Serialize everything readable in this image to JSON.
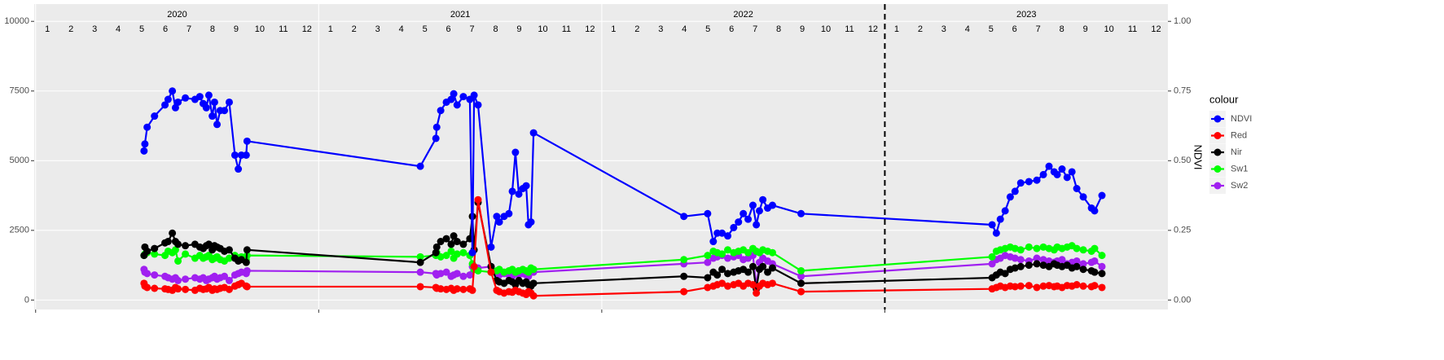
{
  "chart_data": {
    "type": "line",
    "y2_title": "NDVI",
    "legend_title": "colour",
    "legend": "right",
    "grid": true,
    "year_labels": [
      2020,
      2021,
      2022,
      2023
    ],
    "month_labels": [
      1,
      2,
      3,
      4,
      5,
      6,
      7,
      8,
      9,
      10,
      11,
      12
    ],
    "vline": 2023,
    "xlim": [
      2019.995,
      2024.0
    ],
    "xticks": [
      2020,
      2021,
      2022,
      2023
    ],
    "ylim": [
      -340,
      10620
    ],
    "yticks": [
      0,
      2500,
      5000,
      7500,
      10000
    ],
    "y2lim": [
      -0.034,
      1.062
    ],
    "y2ticks": [
      {
        "value": 0,
        "label": "0.00"
      },
      {
        "value": 0.25,
        "label": "0.25"
      },
      {
        "value": 0.5,
        "label": "0.50"
      },
      {
        "value": 0.75,
        "label": "0.75"
      },
      {
        "value": 1,
        "label": "1.00"
      }
    ],
    "x": [
      2020.383,
      2020.386,
      2020.394,
      2020.42,
      2020.457,
      2020.468,
      2020.483,
      2020.494,
      2020.503,
      2020.529,
      2020.563,
      2020.58,
      2020.592,
      2020.603,
      2020.612,
      2020.624,
      2020.632,
      2020.641,
      2020.652,
      2020.667,
      2020.684,
      2020.704,
      2020.716,
      2020.727,
      2020.744,
      2020.747,
      2021.359,
      2021.414,
      2021.417,
      2021.431,
      2021.451,
      2021.468,
      2021.477,
      2021.489,
      2021.511,
      2021.534,
      2021.543,
      2021.549,
      2021.563,
      2021.609,
      2021.629,
      2021.638,
      2021.655,
      2021.672,
      2021.684,
      2021.695,
      2021.707,
      2021.721,
      2021.733,
      2021.741,
      2021.75,
      2021.759,
      2022.29,
      2022.374,
      2022.394,
      2022.408,
      2022.425,
      2022.445,
      2022.466,
      2022.483,
      2022.5,
      2022.517,
      2022.534,
      2022.546,
      2022.557,
      2022.569,
      2022.586,
      2022.603,
      2022.704,
      2023.379,
      2023.394,
      2023.408,
      2023.425,
      2023.443,
      2023.46,
      2023.48,
      2023.509,
      2023.537,
      2023.56,
      2023.58,
      2023.598,
      2023.609,
      2023.626,
      2023.644,
      2023.661,
      2023.678,
      2023.701,
      2023.73,
      2023.741,
      2023.767
    ],
    "series": [
      {
        "name": "NDVI",
        "color": "#0000ff",
        "axis": "y2",
        "values": [
          0.535,
          0.56,
          0.62,
          0.66,
          0.7,
          0.72,
          0.75,
          0.69,
          0.71,
          0.725,
          0.72,
          0.73,
          0.705,
          0.69,
          0.735,
          0.66,
          0.71,
          0.63,
          0.68,
          0.68,
          0.71,
          0.52,
          0.47,
          0.52,
          0.52,
          0.57,
          0.48,
          0.58,
          0.62,
          0.68,
          0.71,
          0.72,
          0.74,
          0.7,
          0.73,
          0.72,
          0.17,
          0.735,
          0.7,
          0.19,
          0.3,
          0.28,
          0.3,
          0.31,
          0.39,
          0.53,
          0.38,
          0.4,
          0.41,
          0.27,
          0.28,
          0.6,
          0.3,
          0.31,
          0.21,
          0.24,
          0.24,
          0.23,
          0.26,
          0.28,
          0.31,
          0.29,
          0.34,
          0.27,
          0.32,
          0.36,
          0.33,
          0.34,
          0.31,
          0.27,
          0.24,
          0.29,
          0.32,
          0.37,
          0.39,
          0.42,
          0.425,
          0.43,
          0.45,
          0.48,
          0.46,
          0.45,
          0.47,
          0.44,
          0.46,
          0.4,
          0.37,
          0.33,
          0.32,
          0.375
        ]
      },
      {
        "name": "Red",
        "color": "#ff0000",
        "values": [
          600,
          500,
          450,
          420,
          400,
          380,
          350,
          450,
          400,
          380,
          350,
          420,
          380,
          400,
          450,
          350,
          400,
          380,
          420,
          450,
          380,
          500,
          550,
          600,
          500,
          480,
          480,
          450,
          420,
          400,
          380,
          420,
          350,
          400,
          380,
          400,
          350,
          1200,
          3600,
          1000,
          350,
          300,
          250,
          300,
          280,
          350,
          300,
          250,
          200,
          300,
          250,
          150,
          300,
          450,
          500,
          550,
          600,
          500,
          550,
          600,
          500,
          600,
          550,
          250,
          500,
          600,
          550,
          600,
          300,
          400,
          450,
          500,
          450,
          500,
          480,
          500,
          520,
          450,
          500,
          520,
          480,
          500,
          450,
          520,
          500,
          550,
          500,
          480,
          520,
          450
        ]
      },
      {
        "name": "Nir",
        "color": "#000000",
        "values": [
          1600,
          1900,
          1750,
          1850,
          2050,
          2100,
          2400,
          2100,
          2000,
          1950,
          2000,
          1900,
          1850,
          1950,
          2000,
          1800,
          1950,
          1900,
          1850,
          1750,
          1800,
          1500,
          1400,
          1450,
          1350,
          1800,
          1350,
          1700,
          1900,
          2100,
          2200,
          2000,
          2300,
          2100,
          2000,
          2200,
          3000,
          1800,
          3500,
          1200,
          700,
          650,
          600,
          700,
          650,
          550,
          700,
          600,
          650,
          550,
          500,
          600,
          850,
          800,
          1000,
          900,
          1100,
          950,
          1000,
          1050,
          1100,
          1000,
          1200,
          400,
          1100,
          1200,
          1000,
          1150,
          600,
          800,
          900,
          1000,
          950,
          1100,
          1150,
          1200,
          1250,
          1300,
          1250,
          1200,
          1300,
          1250,
          1200,
          1250,
          1150,
          1200,
          1100,
          1050,
          1000,
          950
        ]
      },
      {
        "name": "Sw1",
        "color": "#00ff00",
        "values": [
          1600,
          1650,
          1700,
          1650,
          1600,
          1750,
          1700,
          1800,
          1400,
          1650,
          1500,
          1600,
          1500,
          1550,
          1600,
          1450,
          1500,
          1550,
          1450,
          1400,
          1500,
          1600,
          1500,
          1550,
          1450,
          1600,
          1550,
          1600,
          1700,
          1550,
          1600,
          1750,
          1500,
          1650,
          1700,
          1600,
          1300,
          1100,
          1050,
          1000,
          1050,
          1100,
          1000,
          1050,
          1100,
          1000,
          1050,
          1100,
          1050,
          1000,
          1150,
          1100,
          1450,
          1600,
          1750,
          1700,
          1650,
          1800,
          1700,
          1750,
          1800,
          1700,
          1850,
          1750,
          1700,
          1800,
          1750,
          1700,
          1050,
          1550,
          1750,
          1800,
          1850,
          1900,
          1850,
          1800,
          1900,
          1850,
          1900,
          1850,
          1800,
          1900,
          1850,
          1900,
          1950,
          1850,
          1800,
          1750,
          1850,
          1600
        ]
      },
      {
        "name": "Sw2",
        "color": "#a020f0",
        "values": [
          1100,
          1000,
          950,
          900,
          850,
          800,
          750,
          800,
          700,
          750,
          800,
          750,
          800,
          700,
          750,
          800,
          850,
          750,
          800,
          850,
          700,
          900,
          950,
          1000,
          950,
          1050,
          1000,
          950,
          900,
          950,
          1000,
          850,
          900,
          950,
          850,
          900,
          1200,
          1100,
          1150,
          1200,
          1000,
          900,
          950,
          900,
          850,
          950,
          900,
          950,
          900,
          850,
          1000,
          1000,
          1300,
          1350,
          1500,
          1550,
          1600,
          1500,
          1550,
          1600,
          1450,
          1500,
          1600,
          500,
          1350,
          1500,
          1400,
          1300,
          850,
          1300,
          1450,
          1500,
          1600,
          1550,
          1500,
          1450,
          1400,
          1500,
          1450,
          1400,
          1350,
          1400,
          1450,
          1300,
          1350,
          1400,
          1300,
          1350,
          1400,
          1200
        ]
      }
    ]
  }
}
